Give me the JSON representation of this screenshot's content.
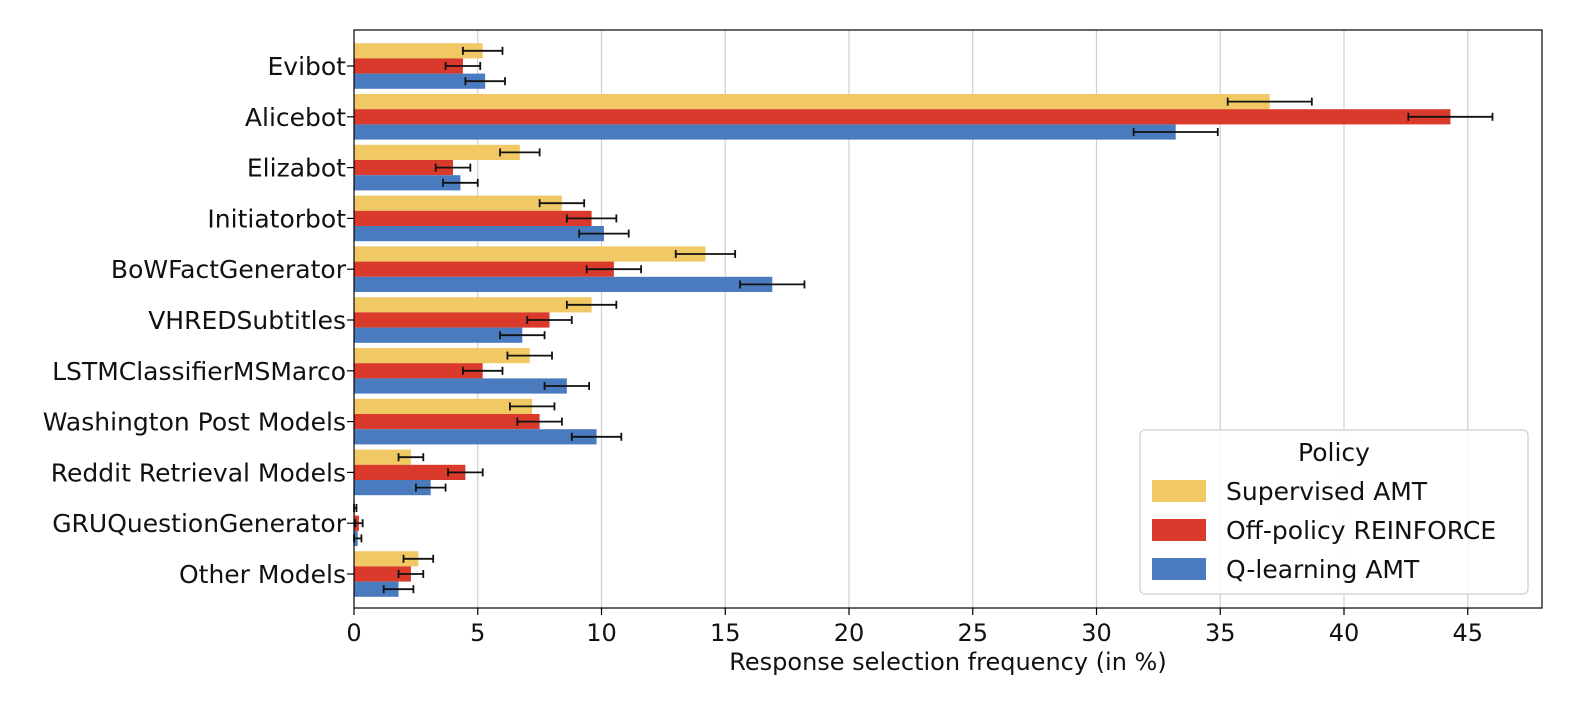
{
  "chart_data": {
    "type": "bar",
    "orientation": "horizontal",
    "title": "",
    "xlabel": "Response selection frequency (in %)",
    "ylabel": "",
    "xlim": [
      0,
      48
    ],
    "xticks": [
      0,
      5,
      10,
      15,
      20,
      25,
      30,
      35,
      40,
      45
    ],
    "grid": "vertical lines on",
    "legend_placement": "lower-right",
    "legend_title": "Policy",
    "categories": [
      "Evibot",
      "Alicebot",
      "Elizabot",
      "Initiatorbot",
      "BoWFactGenerator",
      "VHREDSubtitles",
      "LSTMClassifierMSMarco",
      "Washington Post Models",
      "Reddit Retrieval Models",
      "GRUQuestionGenerator",
      "Other Models"
    ],
    "series": [
      {
        "name": "Supervised AMT",
        "color": "#f0c964",
        "values": [
          5.2,
          37.0,
          6.7,
          8.4,
          14.2,
          9.6,
          7.1,
          7.2,
          2.3,
          0.05,
          2.6
        ],
        "errors": [
          0.8,
          1.7,
          0.8,
          0.9,
          1.2,
          1.0,
          0.9,
          0.9,
          0.5,
          0.05,
          0.6
        ]
      },
      {
        "name": "Off-policy REINFORCE",
        "color": "#d93a2b",
        "values": [
          4.4,
          44.3,
          4.0,
          9.6,
          10.5,
          7.9,
          5.2,
          7.5,
          4.5,
          0.2,
          2.3
        ],
        "errors": [
          0.7,
          1.7,
          0.7,
          1.0,
          1.1,
          0.9,
          0.8,
          0.9,
          0.7,
          0.15,
          0.5
        ]
      },
      {
        "name": "Q-learning AMT",
        "color": "#4a7bbf",
        "values": [
          5.3,
          33.2,
          4.3,
          10.1,
          16.9,
          6.8,
          8.6,
          9.8,
          3.1,
          0.15,
          1.8
        ],
        "errors": [
          0.8,
          1.7,
          0.7,
          1.0,
          1.3,
          0.9,
          0.9,
          1.0,
          0.6,
          0.15,
          0.6
        ]
      }
    ]
  }
}
